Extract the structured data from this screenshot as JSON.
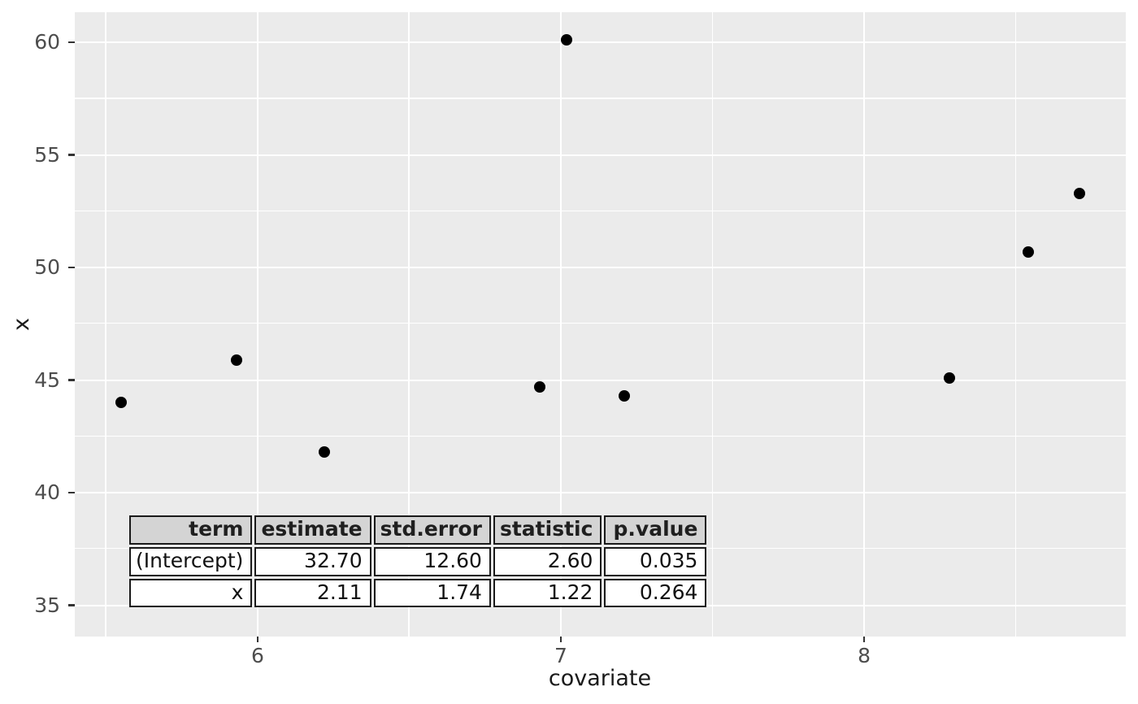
{
  "figure": {
    "background": "#FFFFFF",
    "panel_bg": "#EBEBEB",
    "grid_color": "#FFFFFF",
    "point_color": "#000000",
    "tick_label_color": "#4D4D4D",
    "axis_title_color": "#1A1A1A",
    "tick_mark_color": "#333333",
    "table_header_bg": "#D4D4D4",
    "table_border_color": "#1A1A1A"
  },
  "chart_data": {
    "type": "scatter",
    "title": "",
    "xlabel": "covariate",
    "ylabel": "x",
    "x_domain": [
      5.397,
      8.863
    ],
    "y_domain": [
      33.61,
      61.34
    ],
    "x_major_ticks": [
      6,
      7,
      8
    ],
    "x_minor_ticks": [
      5.5,
      6.5,
      7.5,
      8.5
    ],
    "y_major_ticks": [
      35,
      40,
      45,
      50,
      55,
      60
    ],
    "y_minor_ticks": [
      37.5,
      42.5,
      47.5,
      52.5,
      57.5
    ],
    "grid": "major-and-minor-white-on-gray",
    "legend": "none",
    "points": [
      {
        "x": 5.55,
        "y": 44.0
      },
      {
        "x": 5.93,
        "y": 45.9
      },
      {
        "x": 6.22,
        "y": 41.8
      },
      {
        "x": 6.93,
        "y": 44.7
      },
      {
        "x": 7.02,
        "y": 60.1
      },
      {
        "x": 7.21,
        "y": 44.3
      },
      {
        "x": 8.28,
        "y": 45.1
      },
      {
        "x": 8.54,
        "y": 50.7
      },
      {
        "x": 8.71,
        "y": 53.3
      }
    ],
    "annotation_table": {
      "headers": [
        "term",
        "estimate",
        "std.error",
        "statistic",
        "p.value"
      ],
      "rows": [
        [
          "(Intercept)",
          "32.70",
          "12.60",
          "2.60",
          "0.035"
        ],
        [
          "x",
          "2.11",
          "1.74",
          "1.22",
          "0.264"
        ]
      ]
    }
  }
}
